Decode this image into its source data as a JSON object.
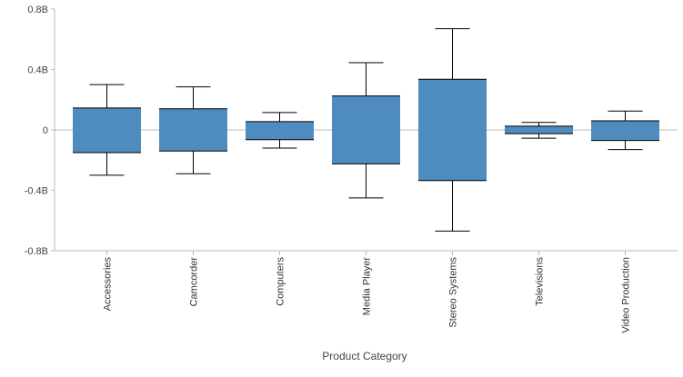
{
  "chart_data": {
    "type": "box",
    "xlabel": "Product Category",
    "ylabel": "",
    "ylim": [
      -0.8,
      0.8
    ],
    "y_unit_suffix": "B",
    "y_ticks": [
      {
        "value": 0.8,
        "label": "0.8B"
      },
      {
        "value": 0.4,
        "label": "0.4B"
      },
      {
        "value": 0,
        "label": "0"
      },
      {
        "value": -0.4,
        "label": "-0.4B"
      },
      {
        "value": -0.8,
        "label": "-0.8B"
      }
    ],
    "categories": [
      "Accessories",
      "Camcorder",
      "Computers",
      "Media Player",
      "Stereo Systems",
      "Televisions",
      "Video Production"
    ],
    "boxes": [
      {
        "category": "Accessories",
        "whisker_low": -0.3,
        "q1": -0.15,
        "q3": 0.145,
        "whisker_high": 0.3
      },
      {
        "category": "Camcorder",
        "whisker_low": -0.29,
        "q1": -0.14,
        "q3": 0.14,
        "whisker_high": 0.285
      },
      {
        "category": "Computers",
        "whisker_low": -0.12,
        "q1": -0.065,
        "q3": 0.055,
        "whisker_high": 0.115
      },
      {
        "category": "Media Player",
        "whisker_low": -0.45,
        "q1": -0.225,
        "q3": 0.225,
        "whisker_high": 0.445
      },
      {
        "category": "Stereo Systems",
        "whisker_low": -0.67,
        "q1": -0.335,
        "q3": 0.335,
        "whisker_high": 0.67
      },
      {
        "category": "Televisions",
        "whisker_low": -0.055,
        "q1": -0.025,
        "q3": 0.025,
        "whisker_high": 0.05
      },
      {
        "category": "Video Production",
        "whisker_low": -0.13,
        "q1": -0.07,
        "q3": 0.06,
        "whisker_high": 0.125
      }
    ],
    "grid": false,
    "zero_line": true,
    "colors": {
      "box_fill": "#4e8bbf",
      "box_edge": "#000000",
      "whisker": "#000000",
      "zero_line": "#bbbbbb",
      "axis": "#bbbbbb"
    }
  }
}
